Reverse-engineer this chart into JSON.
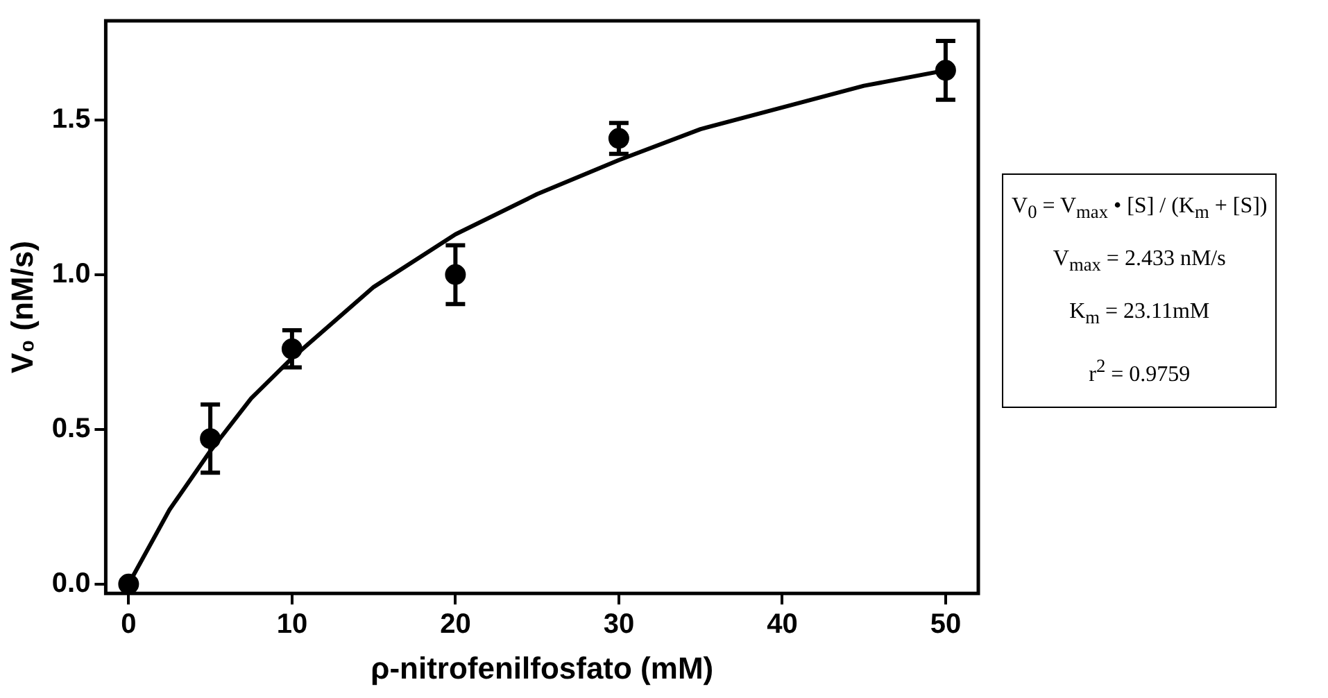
{
  "chart_data": {
    "type": "scatter",
    "xlabel": "ρ-nitrofenilfosfato (mM)",
    "ylabel": "V₀ (nM/s)",
    "xlim": [
      -1.4,
      52
    ],
    "ylim": [
      -0.03,
      1.82
    ],
    "xticks": [
      0,
      10,
      20,
      30,
      40,
      50
    ],
    "yticks": [
      {
        "value": 0,
        "label": "0.0"
      },
      {
        "value": 0.5,
        "label": "0.5"
      },
      {
        "value": 1,
        "label": "1.0"
      },
      {
        "value": 1.5,
        "label": "1.5"
      }
    ],
    "grid": false,
    "legend": false,
    "marker": "circle",
    "series": [
      {
        "color": "#000000",
        "x": [
          0,
          5,
          10,
          20,
          30,
          50
        ],
        "values": [
          0,
          0.47,
          0.76,
          1.0,
          1.44,
          1.66
        ],
        "errors": [
          null,
          0.11,
          0.06,
          0.095,
          0.05,
          0.095
        ]
      },
      {
        "type": "line",
        "color": "#000000",
        "marker": "none",
        "line_style": "solid",
        "x": [
          0,
          2.5,
          5,
          7.5,
          10,
          15,
          20,
          25,
          30,
          35,
          40,
          45,
          50
        ],
        "values": [
          0,
          0.24,
          0.43,
          0.6,
          0.73,
          0.96,
          1.13,
          1.26,
          1.37,
          1.47,
          1.54,
          1.61,
          1.66
        ]
      }
    ],
    "annotations": [
      "V$_{0}$ = V$_{max}$ • [S] / (K$_{m}$ + [S])",
      "V$_{max}$ = 2.433 nM/s",
      "K$_{m}$ = 23.11mM",
      "r$^{2}$ = 0.9759"
    ]
  }
}
